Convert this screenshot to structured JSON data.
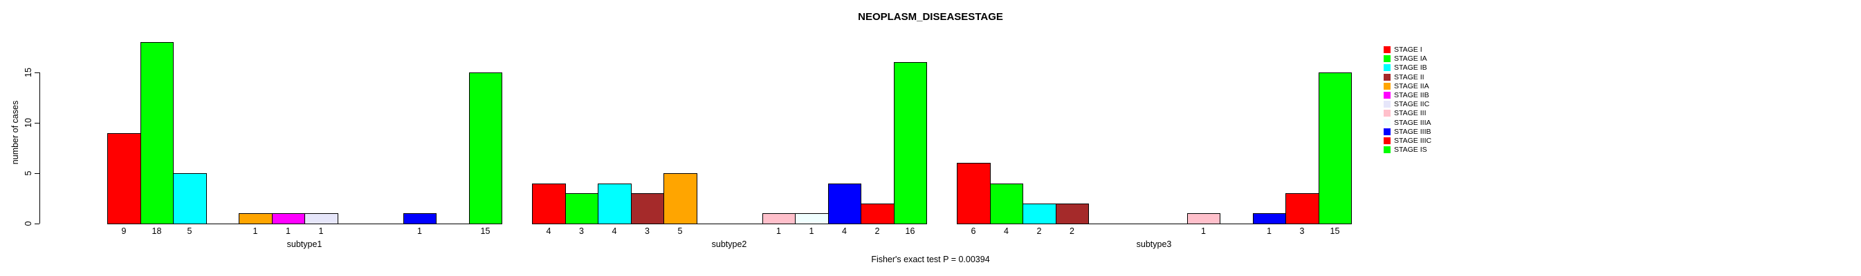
{
  "title": "NEOPLASM_DISEASESTAGE",
  "footer": "Fisher's exact test P = 0.00394",
  "chart_data": {
    "type": "bar",
    "title": "NEOPLASM_DISEASESTAGE",
    "xlabel": "",
    "ylabel": "number of cases",
    "categories": [
      "subtype1",
      "subtype2",
      "subtype3"
    ],
    "yticks": [
      0,
      5,
      10,
      15
    ],
    "ylim": [
      0,
      18
    ],
    "grid": false,
    "legend_position": "right-of-plot",
    "bar_value_labels": true,
    "zero_bars_drawn_as_baseline_segments": true,
    "series": [
      {
        "name": "STAGE I",
        "color": "#FF0000",
        "values": [
          9,
          4,
          6
        ]
      },
      {
        "name": "STAGE IA",
        "color": "#00FF00",
        "values": [
          18,
          3,
          4
        ]
      },
      {
        "name": "STAGE IB",
        "color": "#00FFFF",
        "values": [
          5,
          4,
          2
        ]
      },
      {
        "name": "STAGE II",
        "color": "#A52A2A",
        "values": [
          0,
          3,
          2
        ]
      },
      {
        "name": "STAGE IIA",
        "color": "#FFA500",
        "values": [
          1,
          5,
          0
        ]
      },
      {
        "name": "STAGE IIB",
        "color": "#FF00FF",
        "values": [
          1,
          0,
          0
        ]
      },
      {
        "name": "STAGE IIC",
        "color": "#E6E6FA",
        "values": [
          1,
          0,
          0
        ]
      },
      {
        "name": "STAGE III",
        "color": "#FFC0CB",
        "values": [
          0,
          1,
          1
        ]
      },
      {
        "name": "STAGE IIIA",
        "color": "#F0FFFF",
        "values": [
          0,
          1,
          0
        ]
      },
      {
        "name": "STAGE IIIB",
        "color": "#0000FF",
        "values": [
          1,
          4,
          1
        ]
      },
      {
        "name": "STAGE IIIC",
        "color": "#FF0000",
        "values": [
          0,
          2,
          3
        ]
      },
      {
        "name": "STAGE IS",
        "color": "#00FF00",
        "values": [
          15,
          16,
          15
        ]
      }
    ],
    "annotation": "Fisher's exact test P = 0.00394"
  }
}
